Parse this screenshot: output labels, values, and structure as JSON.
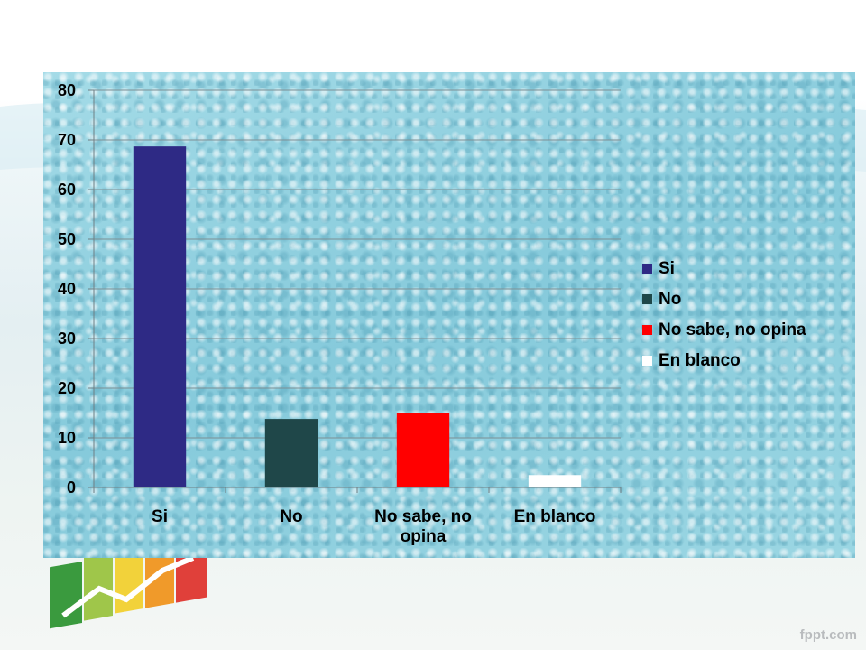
{
  "slide": {
    "brand": "fppt.com"
  },
  "chart_data": {
    "type": "bar",
    "title": "",
    "xlabel": "",
    "ylabel": "",
    "categories": [
      "Si",
      "No",
      "No sabe, no opina",
      "En blanco"
    ],
    "category_labels": [
      [
        "Si"
      ],
      [
        "No"
      ],
      [
        "No sabe, no",
        "opina"
      ],
      [
        "En blanco"
      ]
    ],
    "values": [
      68.7,
      13.8,
      15.0,
      2.5
    ],
    "colors": [
      "#2e2a85",
      "#1f4749",
      "#ff0000",
      "#ffffff"
    ],
    "ylim": [
      0,
      80
    ],
    "yticks": [
      0,
      10,
      20,
      30,
      40,
      50,
      60,
      70,
      80
    ],
    "grid": true,
    "legend": {
      "position": "right",
      "entries": [
        "Si",
        "No",
        "No sabe, no opina",
        "En blanco"
      ]
    }
  }
}
